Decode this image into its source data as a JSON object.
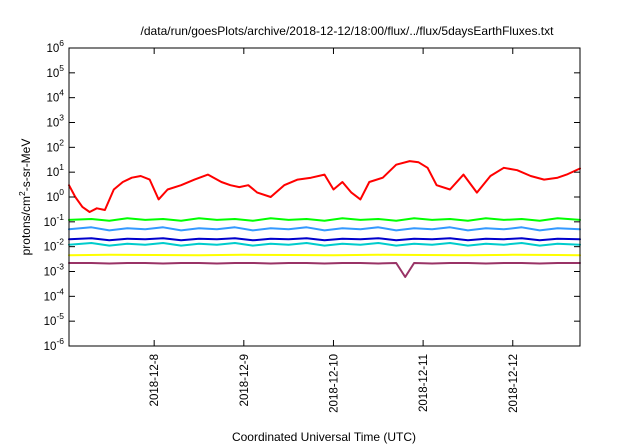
{
  "chart_data": {
    "type": "line",
    "title": "/data/run/goesPlots/archive/2018-12-12/18:00/flux/../flux/5daysEarthFluxes.txt",
    "xlabel": "Coordinated Universal Time (UTC)",
    "ylabel": {
      "base": "protons/cm",
      "exp": "2",
      "rest": "-s-sr-MeV"
    },
    "y_scale": "log",
    "ylim_exp": [
      -6,
      6
    ],
    "y_ticks": [
      {
        "base": "10",
        "exp": "6"
      },
      {
        "base": "10",
        "exp": "5"
      },
      {
        "base": "10",
        "exp": "4"
      },
      {
        "base": "10",
        "exp": "3"
      },
      {
        "base": "10",
        "exp": "2"
      },
      {
        "base": "10",
        "exp": "1"
      },
      {
        "base": "10",
        "exp": "0"
      },
      {
        "base": "10",
        "exp": "-1"
      },
      {
        "base": "10",
        "exp": "-2"
      },
      {
        "base": "10",
        "exp": "-3"
      },
      {
        "base": "10",
        "exp": "-4"
      },
      {
        "base": "10",
        "exp": "-5"
      },
      {
        "base": "10",
        "exp": "-6"
      }
    ],
    "xlim_days": [
      7.05,
      12.75
    ],
    "x_ticks": [
      {
        "label": "2018-12-8",
        "day": 8
      },
      {
        "label": "2018-12-9",
        "day": 9
      },
      {
        "label": "2018-12-10",
        "day": 10
      },
      {
        "label": "2018-12-11",
        "day": 11
      },
      {
        "label": "2018-12-12",
        "day": 12
      }
    ],
    "grid": false,
    "series": [
      {
        "color": "#ff0000",
        "x": [
          7.05,
          7.12,
          7.2,
          7.28,
          7.36,
          7.45,
          7.55,
          7.65,
          7.75,
          7.85,
          7.95,
          8.05,
          8.15,
          8.3,
          8.45,
          8.6,
          8.75,
          8.85,
          8.95,
          9.05,
          9.15,
          9.3,
          9.45,
          9.6,
          9.75,
          9.9,
          10.0,
          10.1,
          10.2,
          10.3,
          10.4,
          10.55,
          10.7,
          10.85,
          10.95,
          11.05,
          11.15,
          11.3,
          11.45,
          11.6,
          11.75,
          11.9,
          12.05,
          12.2,
          12.35,
          12.5,
          12.6,
          12.75
        ],
        "y": [
          3,
          1,
          0.4,
          0.25,
          0.35,
          0.3,
          2,
          4,
          6,
          7,
          5,
          0.8,
          2,
          3,
          5,
          8,
          4,
          3,
          2.5,
          3,
          1.5,
          1,
          3,
          5,
          6,
          8,
          2,
          4,
          1.5,
          0.8,
          4,
          6,
          20,
          28,
          25,
          15,
          3,
          2,
          8,
          1.5,
          7,
          15,
          12,
          7,
          5,
          6,
          8,
          14
        ]
      },
      {
        "color": "#00ff00",
        "x": [
          7.05,
          7.3,
          7.5,
          7.7,
          7.9,
          8.1,
          8.3,
          8.5,
          8.7,
          8.9,
          9.1,
          9.3,
          9.5,
          9.7,
          9.9,
          10.1,
          10.3,
          10.5,
          10.7,
          10.9,
          11.1,
          11.3,
          11.5,
          11.7,
          11.9,
          12.1,
          12.3,
          12.5,
          12.75
        ],
        "y": [
          0.12,
          0.13,
          0.11,
          0.14,
          0.12,
          0.13,
          0.11,
          0.14,
          0.12,
          0.13,
          0.11,
          0.14,
          0.12,
          0.13,
          0.11,
          0.14,
          0.12,
          0.13,
          0.11,
          0.14,
          0.12,
          0.13,
          0.11,
          0.14,
          0.12,
          0.13,
          0.11,
          0.14,
          0.12
        ]
      },
      {
        "color": "#3399ff",
        "x": [
          7.05,
          7.3,
          7.5,
          7.7,
          7.9,
          8.1,
          8.3,
          8.5,
          8.7,
          8.9,
          9.1,
          9.3,
          9.5,
          9.7,
          9.9,
          10.1,
          10.3,
          10.5,
          10.7,
          10.9,
          11.1,
          11.3,
          11.5,
          11.7,
          11.9,
          12.1,
          12.3,
          12.5,
          12.75
        ],
        "y": [
          0.05,
          0.06,
          0.045,
          0.055,
          0.05,
          0.06,
          0.045,
          0.055,
          0.05,
          0.06,
          0.045,
          0.055,
          0.05,
          0.06,
          0.045,
          0.055,
          0.05,
          0.06,
          0.045,
          0.055,
          0.05,
          0.06,
          0.045,
          0.055,
          0.05,
          0.06,
          0.045,
          0.055,
          0.05
        ]
      },
      {
        "color": "#00cccc",
        "x": [
          7.05,
          7.3,
          7.5,
          7.7,
          7.9,
          8.1,
          8.3,
          8.5,
          8.7,
          8.9,
          9.1,
          9.3,
          9.5,
          9.7,
          9.9,
          10.1,
          10.3,
          10.5,
          10.7,
          10.9,
          11.1,
          11.3,
          11.5,
          11.7,
          11.9,
          12.1,
          12.3,
          12.5,
          12.75
        ],
        "y": [
          0.012,
          0.014,
          0.011,
          0.013,
          0.012,
          0.014,
          0.011,
          0.013,
          0.012,
          0.014,
          0.011,
          0.013,
          0.012,
          0.014,
          0.011,
          0.013,
          0.012,
          0.014,
          0.011,
          0.013,
          0.012,
          0.014,
          0.011,
          0.013,
          0.012,
          0.014,
          0.011,
          0.013,
          0.012
        ]
      },
      {
        "color": "#0000cc",
        "x": [
          7.05,
          7.3,
          7.5,
          7.7,
          7.9,
          8.1,
          8.3,
          8.5,
          8.7,
          8.9,
          9.1,
          9.3,
          9.5,
          9.7,
          9.9,
          10.1,
          10.3,
          10.5,
          10.7,
          10.9,
          11.1,
          11.3,
          11.5,
          11.7,
          11.9,
          12.1,
          12.3,
          12.5,
          12.75
        ],
        "y": [
          0.02,
          0.022,
          0.018,
          0.021,
          0.02,
          0.022,
          0.018,
          0.021,
          0.02,
          0.022,
          0.018,
          0.021,
          0.02,
          0.022,
          0.018,
          0.021,
          0.02,
          0.022,
          0.018,
          0.021,
          0.02,
          0.022,
          0.018,
          0.021,
          0.02,
          0.022,
          0.018,
          0.021,
          0.02
        ]
      },
      {
        "color": "#ffff00",
        "x": [
          7.05,
          7.5,
          8.0,
          8.5,
          9.0,
          9.5,
          10.0,
          10.5,
          11.0,
          11.5,
          12.0,
          12.5,
          12.75
        ],
        "y": [
          0.0045,
          0.0047,
          0.0046,
          0.0045,
          0.0047,
          0.0046,
          0.0045,
          0.0047,
          0.0046,
          0.0045,
          0.0047,
          0.0046,
          0.0045
        ]
      },
      {
        "color": "#993366",
        "x": [
          7.05,
          7.3,
          7.5,
          7.7,
          7.9,
          8.1,
          8.3,
          8.5,
          8.7,
          8.9,
          9.1,
          9.3,
          9.5,
          9.7,
          9.9,
          10.1,
          10.3,
          10.5,
          10.7,
          10.8,
          10.9,
          11.1,
          11.3,
          11.5,
          11.7,
          11.9,
          12.1,
          12.3,
          12.5,
          12.75
        ],
        "y": [
          0.0022,
          0.0022,
          0.0021,
          0.0022,
          0.0022,
          0.0021,
          0.0022,
          0.0022,
          0.0021,
          0.0022,
          0.0022,
          0.0021,
          0.0022,
          0.0022,
          0.0021,
          0.0022,
          0.0022,
          0.0021,
          0.0022,
          0.0006,
          0.0022,
          0.0021,
          0.0022,
          0.0022,
          0.0021,
          0.0022,
          0.0022,
          0.0021,
          0.0022,
          0.0022
        ]
      }
    ]
  }
}
